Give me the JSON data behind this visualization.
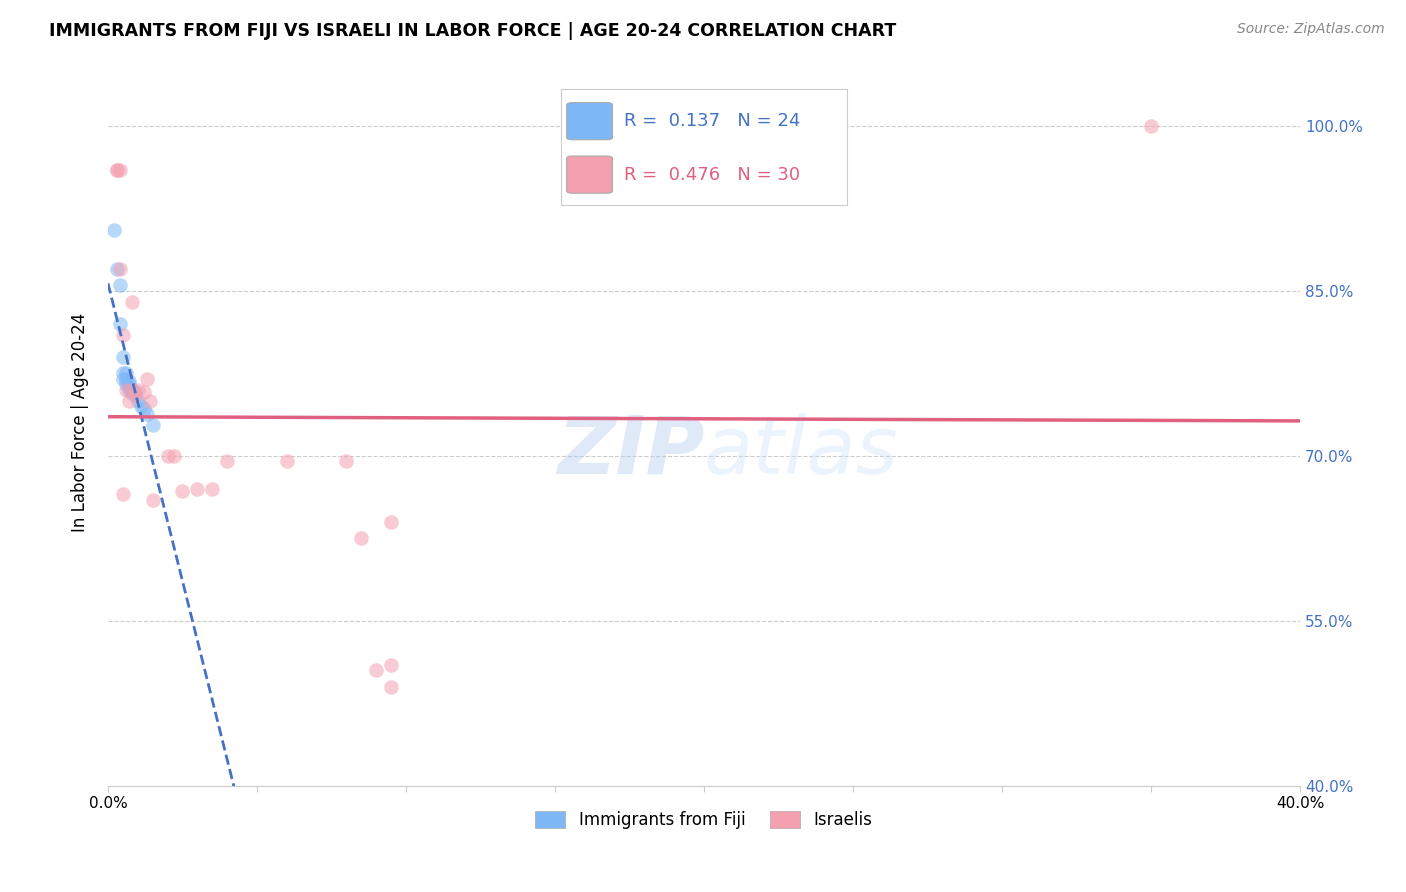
{
  "title": "IMMIGRANTS FROM FIJI VS ISRAELI IN LABOR FORCE | AGE 20-24 CORRELATION CHART",
  "source": "Source: ZipAtlas.com",
  "ylabel": "In Labor Force | Age 20-24",
  "xlim": [
    0.0,
    0.4
  ],
  "ylim": [
    0.4,
    1.06
  ],
  "yticks": [
    0.4,
    0.55,
    0.7,
    0.85,
    1.0
  ],
  "xticks": [
    0.0,
    0.05,
    0.1,
    0.15,
    0.2,
    0.25,
    0.3,
    0.35,
    0.4
  ],
  "fiji_x": [
    0.002,
    0.003,
    0.004,
    0.004,
    0.005,
    0.005,
    0.005,
    0.006,
    0.006,
    0.006,
    0.007,
    0.007,
    0.007,
    0.007,
    0.008,
    0.008,
    0.008,
    0.009,
    0.009,
    0.01,
    0.011,
    0.012,
    0.013,
    0.015
  ],
  "fiji_y": [
    0.905,
    0.87,
    0.855,
    0.82,
    0.79,
    0.775,
    0.77,
    0.775,
    0.77,
    0.765,
    0.768,
    0.765,
    0.762,
    0.76,
    0.76,
    0.76,
    0.757,
    0.758,
    0.755,
    0.75,
    0.745,
    0.742,
    0.738,
    0.728
  ],
  "israeli_x": [
    0.003,
    0.003,
    0.004,
    0.004,
    0.005,
    0.005,
    0.006,
    0.007,
    0.008,
    0.008,
    0.009,
    0.01,
    0.012,
    0.013,
    0.014,
    0.015,
    0.02,
    0.022,
    0.025,
    0.03,
    0.035,
    0.04,
    0.06,
    0.08,
    0.085,
    0.09,
    0.095,
    0.095,
    0.095,
    0.35
  ],
  "israeli_y": [
    0.96,
    0.96,
    0.96,
    0.87,
    0.81,
    0.665,
    0.76,
    0.75,
    0.76,
    0.84,
    0.755,
    0.76,
    0.758,
    0.77,
    0.75,
    0.66,
    0.7,
    0.7,
    0.668,
    0.67,
    0.67,
    0.695,
    0.695,
    0.695,
    0.625,
    0.505,
    0.51,
    0.64,
    0.49,
    1.0
  ],
  "fiji_color": "#7EB8F7",
  "israeli_color": "#F4A0B0",
  "fiji_line_color": "#4472C4",
  "israeli_line_color": "#E06080",
  "fiji_r": 0.137,
  "fiji_n": 24,
  "israeli_r": 0.476,
  "israeli_n": 30,
  "legend_fiji_label": "Immigrants from Fiji",
  "legend_israeli_label": "Israelis",
  "right_axis_color": "#4472C4",
  "watermark_zip": "ZIP",
  "watermark_atlas": "atlas",
  "marker_size": 110,
  "alpha": 0.55
}
